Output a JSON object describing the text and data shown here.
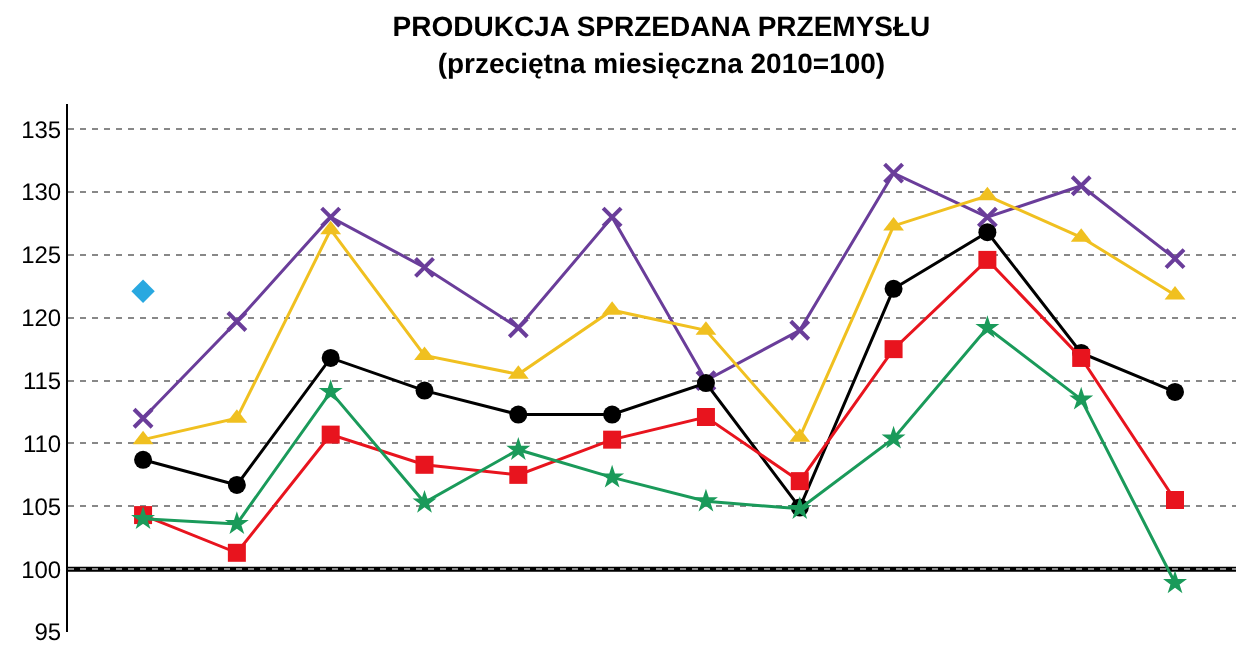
{
  "chart_data": {
    "type": "line",
    "title": "PRODUKCJA SPRZEDANA PRZEMYSŁU",
    "subtitle": "(przeciętna miesięczna 2010=100)",
    "categories": [
      null,
      null,
      null,
      null,
      null,
      null,
      null,
      null,
      null,
      null,
      null,
      null
    ],
    "series": [
      {
        "color": "#6a3d9a",
        "marker": "cross",
        "values": [
          112,
          119.7,
          128,
          124,
          119.2,
          128,
          115,
          119,
          131.5,
          128,
          130.5,
          124.7
        ]
      },
      {
        "color": "#f0c020",
        "marker": "triangle",
        "values": [
          110.3,
          112,
          127,
          117,
          115.5,
          120.6,
          119,
          110.5,
          127.3,
          129.7,
          126.4,
          121.8
        ]
      },
      {
        "color": "#000000",
        "marker": "circle",
        "values": [
          108.7,
          106.7,
          116.8,
          114.2,
          112.3,
          112.3,
          114.8,
          104.9,
          122.3,
          126.8,
          117.2,
          114.1
        ]
      },
      {
        "color": "#e8141e",
        "marker": "square",
        "values": [
          104.3,
          101.3,
          110.7,
          108.3,
          107.5,
          110.3,
          112.1,
          107,
          117.5,
          124.6,
          116.8,
          105.5
        ]
      },
      {
        "color": "#1a9a5a",
        "marker": "star",
        "values": [
          104,
          103.6,
          114.1,
          105.3,
          109.5,
          107.3,
          105.4,
          104.8,
          110.4,
          119.2,
          113.5,
          98.9
        ]
      },
      {
        "type": "scatter",
        "color": "#29a8e0",
        "marker": "diamond",
        "values": [
          122.1,
          null,
          null,
          null,
          null,
          null,
          null,
          null,
          null,
          null,
          null,
          null
        ]
      }
    ],
    "ylim": [
      95,
      137
    ],
    "yticks": [
      95,
      100,
      105,
      110,
      115,
      120,
      125,
      130,
      135
    ],
    "grid": "y",
    "legend": false,
    "ref_lines": [
      {
        "axis": "y",
        "value": 100,
        "color": "#000000"
      }
    ]
  }
}
